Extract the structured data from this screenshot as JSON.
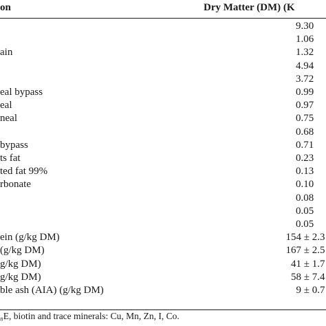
{
  "table": {
    "header": {
      "col_ingredient": "on",
      "col_dm": "Dry Matter (DM) (K"
    },
    "rows": [
      {
        "label": "",
        "value": "9.30"
      },
      {
        "label": "",
        "value": "1.06"
      },
      {
        "label": "ain",
        "value": "1.32"
      },
      {
        "label": "",
        "value": "4.94"
      },
      {
        "label": "",
        "value": "3.72"
      },
      {
        "label": "eal bypass",
        "value": "0.99"
      },
      {
        "label": "eal",
        "value": "0.97"
      },
      {
        "label": "neal",
        "value": "0.75"
      },
      {
        "label": "",
        "value": "0.68"
      },
      {
        "label": "bypass",
        "value": "0.71"
      },
      {
        "label": "ts fat",
        "value": "0.23"
      },
      {
        "label": "ted fat 99%",
        "value": "0.13"
      },
      {
        "label": "rbonate",
        "value": "0.10"
      },
      {
        "label": "",
        "value": "0.08"
      },
      {
        "label": "",
        "value": "0.05"
      },
      {
        "label": "",
        "value": "0.05"
      },
      {
        "label": "ein (g/kg DM)",
        "value": "154 ± 2.3"
      },
      {
        "label": "(g/kg DM)",
        "value": "167 ± 2.5"
      },
      {
        "label": "g/kg DM)",
        "value": "41 ± 1.7"
      },
      {
        "label": "g/kg DM)",
        "value": "58 ± 7.4"
      },
      {
        "label": "ble ash (AIA) (g/kg DM)",
        "value": "9 ± 0.7"
      }
    ],
    "footnote": "₈E, biotin and trace minerals: Cu, Mn, Zn, I, Co."
  }
}
